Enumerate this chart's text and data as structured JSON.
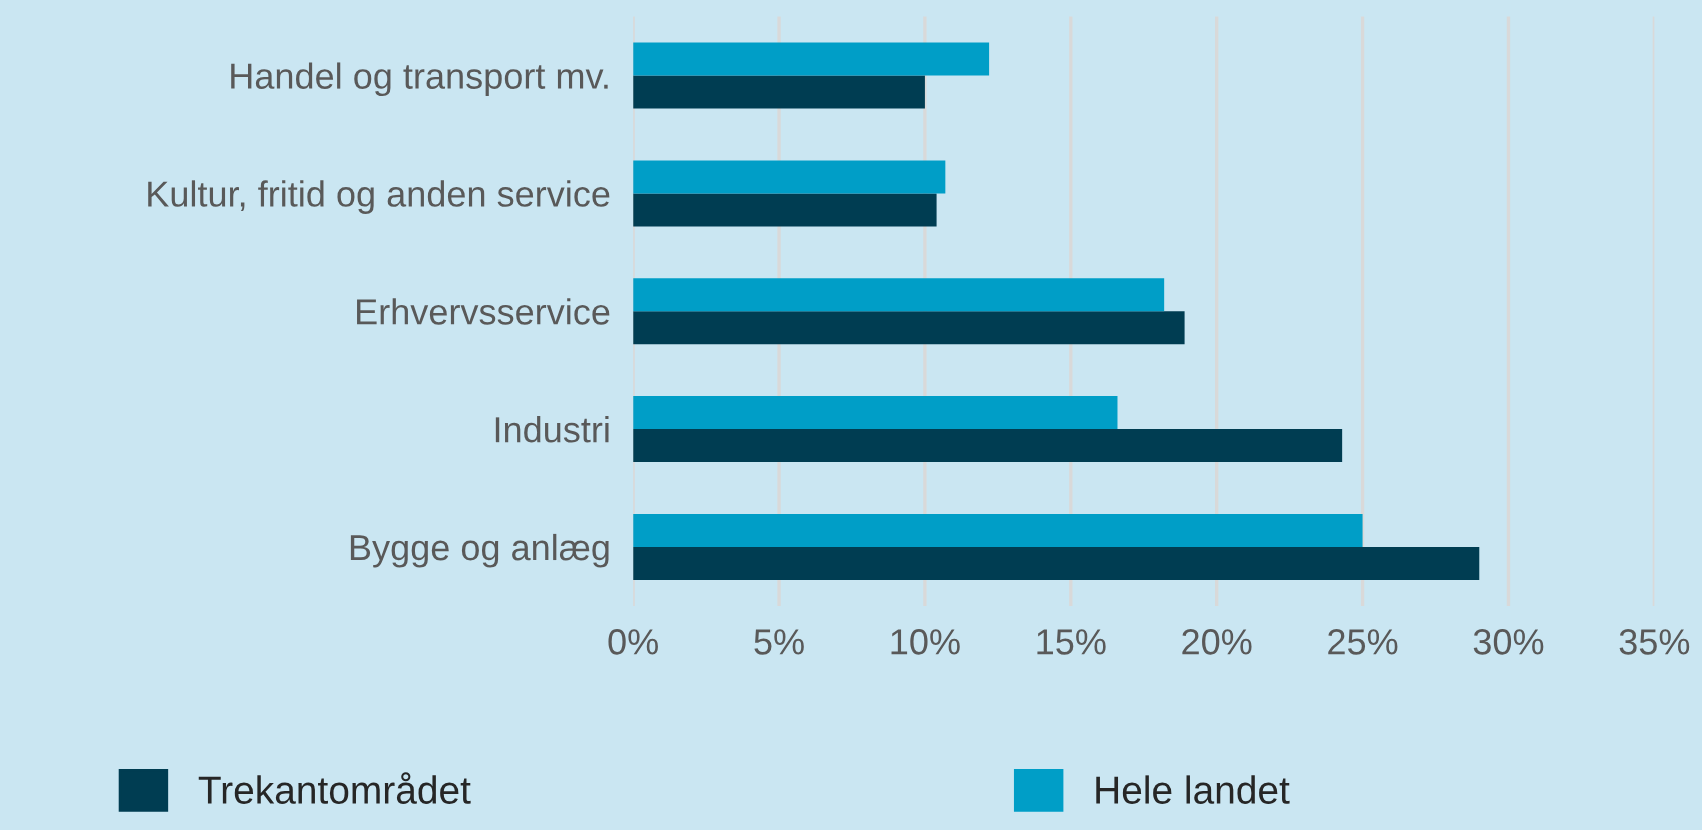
{
  "chart_data": {
    "type": "bar",
    "orientation": "horizontal",
    "categories": [
      "Handel og transport mv.",
      "Kultur, fritid og anden service",
      "Erhvervsservice",
      "Industri",
      "Bygge og anlæg"
    ],
    "series": [
      {
        "name": "Trekantområdet",
        "color": "#003d52",
        "values": [
          10.0,
          10.4,
          18.9,
          24.3,
          29.0
        ]
      },
      {
        "name": "Hele landet",
        "color": "#009ec7",
        "values": [
          12.2,
          10.7,
          18.2,
          16.6,
          25.0
        ]
      }
    ],
    "xlim": [
      0,
      35
    ],
    "xticks": [
      {
        "value": 0,
        "label": "0%"
      },
      {
        "value": 5,
        "label": "5%"
      },
      {
        "value": 10,
        "label": "10%"
      },
      {
        "value": 15,
        "label": "15%"
      },
      {
        "value": 20,
        "label": "20%"
      },
      {
        "value": 25,
        "label": "25%"
      },
      {
        "value": 30,
        "label": "30%"
      },
      {
        "value": 35,
        "label": "35%"
      }
    ],
    "grid": "x",
    "legend": "bottom"
  }
}
